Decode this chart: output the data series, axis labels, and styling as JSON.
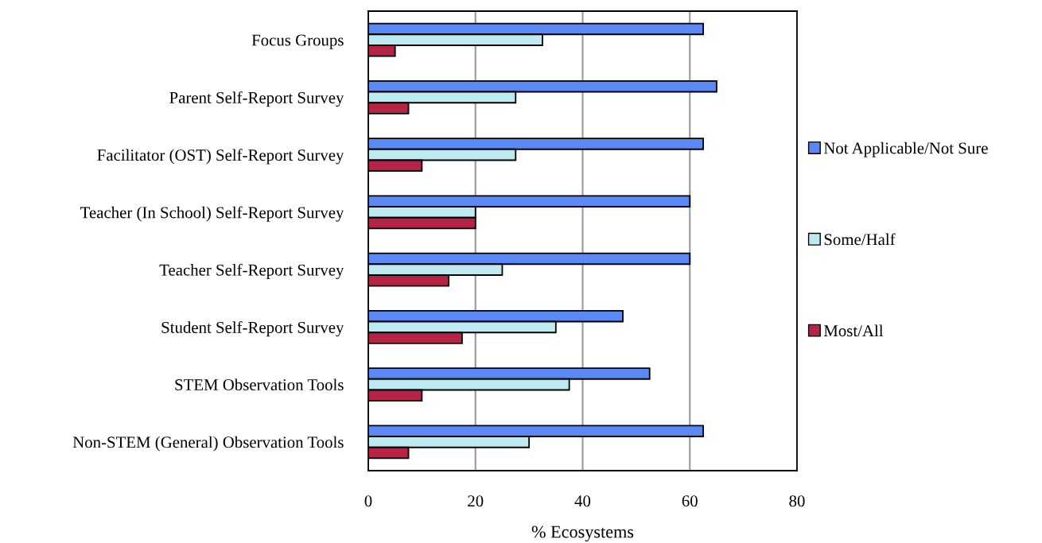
{
  "chart_data": {
    "type": "bar",
    "orientation": "horizontal",
    "xlabel": "% Ecosystems",
    "categories": [
      "Focus Groups",
      "Parent Self-Report Survey",
      "Facilitator (OST) Self-Report Survey",
      "Teacher (In School) Self-Report Survey",
      "Teacher Self-Report Survey",
      "Student Self-Report Survey",
      "STEM Observation Tools",
      "Non-STEM (General) Observation Tools"
    ],
    "series": [
      {
        "name": "Not Applicable/Not Sure",
        "color": "#5a88f5",
        "values": [
          62.5,
          65,
          62.5,
          60,
          60,
          47.5,
          52.5,
          62.5
        ]
      },
      {
        "name": "Some/Half",
        "color": "#bdeaf0",
        "values": [
          32.5,
          27.5,
          27.5,
          20,
          25,
          35,
          37.5,
          30
        ]
      },
      {
        "name": "Most/All",
        "color": "#b52444",
        "values": [
          5,
          7.5,
          10,
          20,
          15,
          17.5,
          10,
          7.5
        ]
      }
    ],
    "xlim": [
      0,
      80
    ],
    "xticks": [
      0,
      20,
      40,
      60,
      80
    ],
    "grid": "x",
    "legend": "right"
  }
}
